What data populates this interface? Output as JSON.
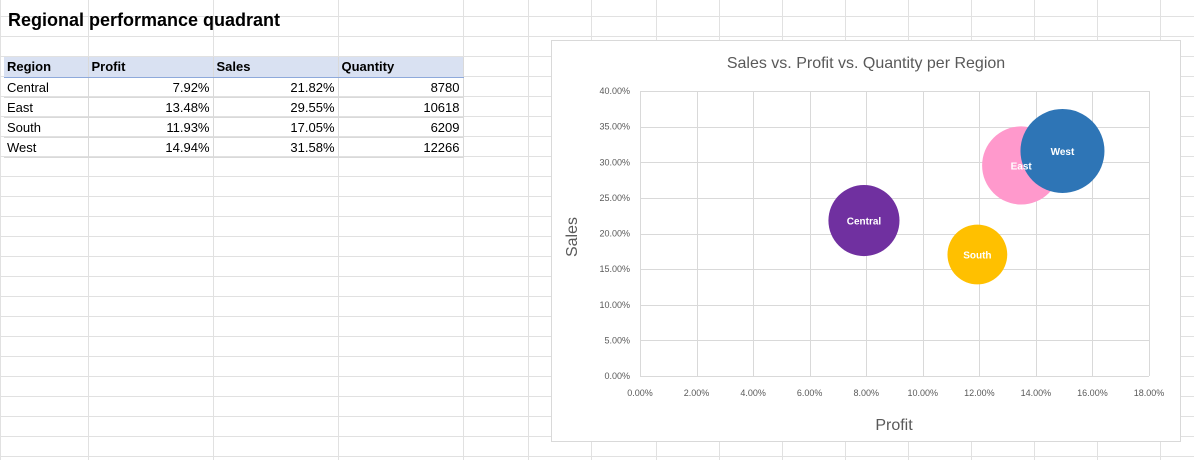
{
  "sheet": {
    "title": "Regional performance quadrant",
    "headers": [
      "Region",
      "Profit",
      "Sales",
      "Quantity"
    ],
    "rows": [
      [
        "Central",
        "7.92%",
        "21.82%",
        "8780"
      ],
      [
        "East",
        "13.48%",
        "29.55%",
        "10618"
      ],
      [
        "South",
        "11.93%",
        "17.05%",
        "6209"
      ],
      [
        "West",
        "14.94%",
        "31.58%",
        "12266"
      ]
    ]
  },
  "chart_data": {
    "type": "scatter",
    "subtype": "bubble",
    "title": "Sales vs. Profit vs. Quantity per Region",
    "xlabel": "Profit",
    "ylabel": "Sales",
    "xlim": [
      0,
      18
    ],
    "ylim": [
      0,
      40
    ],
    "x_ticks": [
      "0.00%",
      "2.00%",
      "4.00%",
      "6.00%",
      "8.00%",
      "10.00%",
      "12.00%",
      "14.00%",
      "16.00%",
      "18.00%"
    ],
    "y_ticks": [
      "0.00%",
      "5.00%",
      "10.00%",
      "15.00%",
      "20.00%",
      "25.00%",
      "30.00%",
      "35.00%",
      "40.00%"
    ],
    "grid": true,
    "points": [
      {
        "label": "Central",
        "x": 7.92,
        "y": 21.82,
        "size": 8780,
        "color": "#7030a0"
      },
      {
        "label": "East",
        "x": 13.48,
        "y": 29.55,
        "size": 10618,
        "color": "#ff99cc"
      },
      {
        "label": "South",
        "x": 11.93,
        "y": 17.05,
        "size": 6209,
        "color": "#ffc000"
      },
      {
        "label": "West",
        "x": 14.94,
        "y": 31.58,
        "size": 12266,
        "color": "#2e75b6"
      }
    ]
  }
}
